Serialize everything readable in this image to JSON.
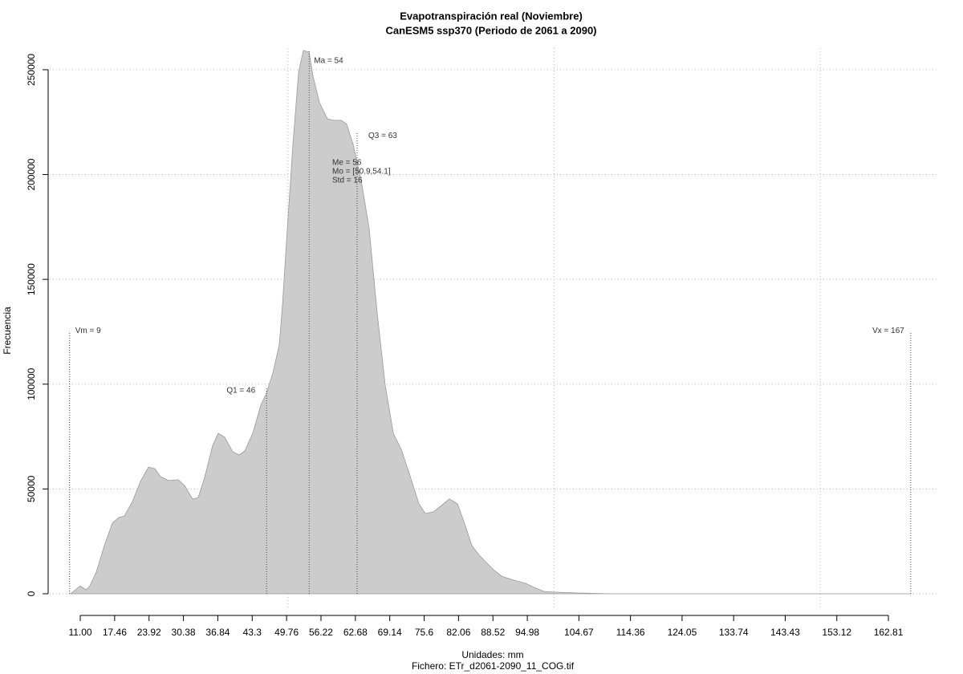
{
  "chart_data": {
    "type": "area",
    "title": "Evapotranspiración real (Noviembre)",
    "subtitle": "CanESM5 ssp370 (Periodo de 2061 a 2090)",
    "xlabel": "Unidades: mm",
    "caption": "Fichero: ETr_d2061-2090_11_COG.tif",
    "ylabel": "Frecuencia",
    "color": "#cccccc",
    "x": [
      9.19,
      11.0,
      12.06,
      12.81,
      14.02,
      15.52,
      17.03,
      18.24,
      19.29,
      20.8,
      22.31,
      23.82,
      25.02,
      26.08,
      27.59,
      29.39,
      30.6,
      32.11,
      33.16,
      34.37,
      35.87,
      36.93,
      38.14,
      39.64,
      40.85,
      41.9,
      43.41,
      44.92,
      45.98,
      47.18,
      48.39,
      48.99,
      49.75,
      50.95,
      52.01,
      52.91,
      53.97,
      54.72,
      55.93,
      57.43,
      58.49,
      60.0,
      61.05,
      62.26,
      63.77,
      65.27,
      66.78,
      68.29,
      69.8,
      71.3,
      72.81,
      74.62,
      75.83,
      77.34,
      78.84,
      80.35,
      81.86,
      83.06,
      84.57,
      85.93,
      87.13,
      88.64,
      90.15,
      92.41,
      94.67,
      96.18,
      98.14,
      99.95,
      104.47,
      110.5,
      167.0
    ],
    "values": [
      0,
      3800,
      1900,
      3800,
      10300,
      23000,
      33700,
      36400,
      37100,
      44000,
      53600,
      60500,
      59700,
      55900,
      54000,
      54400,
      51700,
      45200,
      45900,
      55500,
      70800,
      76600,
      74700,
      67800,
      66200,
      68100,
      76600,
      90000,
      95700,
      105300,
      118700,
      137800,
      168500,
      214400,
      248900,
      259200,
      258400,
      246900,
      234300,
      226600,
      225900,
      225900,
      224000,
      214400,
      197200,
      174200,
      134000,
      99500,
      76600,
      68900,
      57400,
      42900,
      38300,
      39100,
      42100,
      45200,
      42900,
      34500,
      23000,
      18400,
      15300,
      11500,
      8400,
      6500,
      5000,
      3100,
      1100,
      800,
      400,
      0,
      0
    ],
    "xlim": [
      5.27,
      172.3
    ],
    "ylim": [
      -7650,
      260300
    ],
    "xticks": [
      {
        "value": 11,
        "label": "11.00"
      },
      17.46,
      23.92,
      30.38,
      36.84,
      43.3,
      49.76,
      56.22,
      62.68,
      69.14,
      75.6,
      82.06,
      88.52,
      94.98,
      104.67,
      114.36,
      124.05,
      133.74,
      143.43,
      153.12,
      162.81
    ],
    "yticks": [
      0,
      50000,
      100000,
      150000,
      200000,
      250000
    ],
    "xgrid": [
      50,
      100,
      150
    ],
    "grid": true,
    "vlines": [
      {
        "x": 9,
        "top": 125000,
        "label": "Vm = 9"
      },
      {
        "x": 46,
        "top": 98800,
        "label": "Q1 = 46"
      },
      {
        "x": 54,
        "top": 259600,
        "label": "Ma = 54"
      },
      {
        "x": 63,
        "top": 220000,
        "label": "Q3 = 63"
      },
      {
        "x": 167,
        "top": 125000,
        "label": "Vx = 167"
      }
    ],
    "stats": [
      "Me = 56",
      "Mo = [50.9,54.1]",
      "Std = 16"
    ]
  }
}
